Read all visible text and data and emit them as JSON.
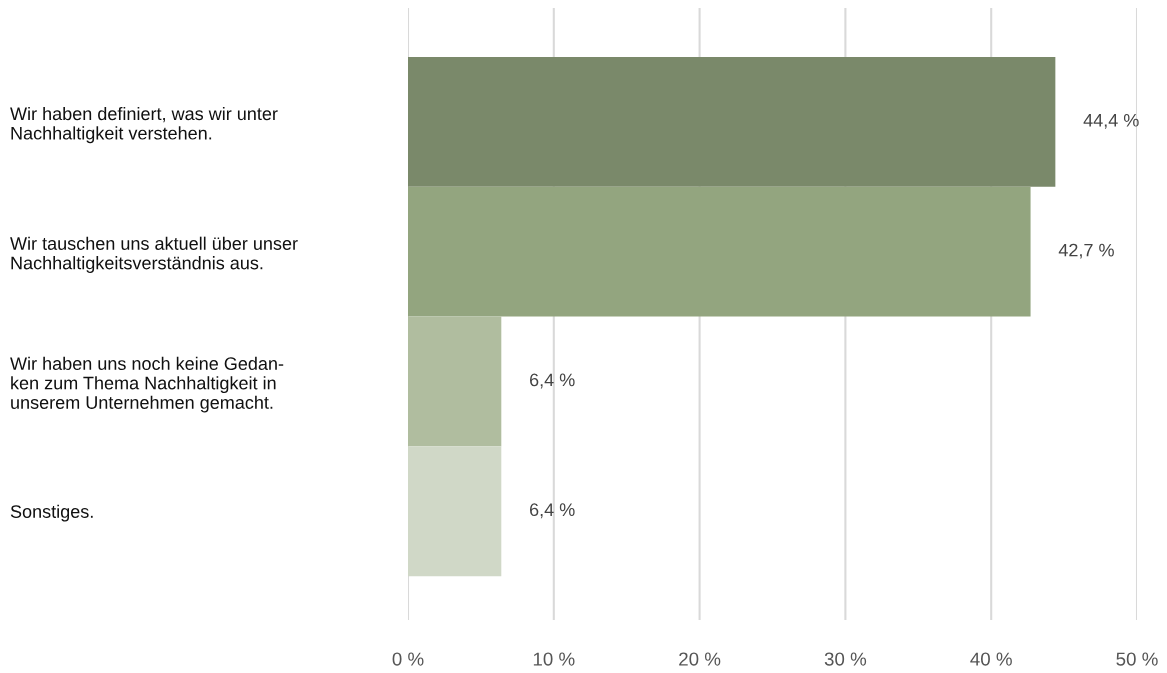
{
  "chart_data": {
    "type": "bar",
    "orientation": "horizontal",
    "categories": [
      "Wir haben definiert, was wir unter\nNachhaltigkeit verstehen.",
      "Wir tauschen uns aktuell über unser\nNachhaltigkeitsverständnis aus.",
      "Wir haben uns noch keine Gedan-\nken zum Thema Nachhaltigkeit in\nunserem Unternehmen gemacht.",
      "Sonstiges."
    ],
    "values": [
      44.4,
      42.7,
      6.4,
      6.4
    ],
    "colors": [
      "#7a896a",
      "#93a57f",
      "#b0bd9f",
      "#d0d8c7"
    ],
    "value_labels": [
      "44,4 %",
      "42,7 %",
      "6,4 %",
      "6,4 %"
    ],
    "xlim": [
      0,
      50
    ],
    "xticks": [
      {
        "value": 0,
        "label": "0 %"
      },
      {
        "value": 10,
        "label": "10 %"
      },
      {
        "value": 20,
        "label": "20 %"
      },
      {
        "value": 30,
        "label": "30 %"
      },
      {
        "value": 40,
        "label": "40 %"
      },
      {
        "value": 50,
        "label": "50 %"
      }
    ],
    "grid": "x"
  }
}
